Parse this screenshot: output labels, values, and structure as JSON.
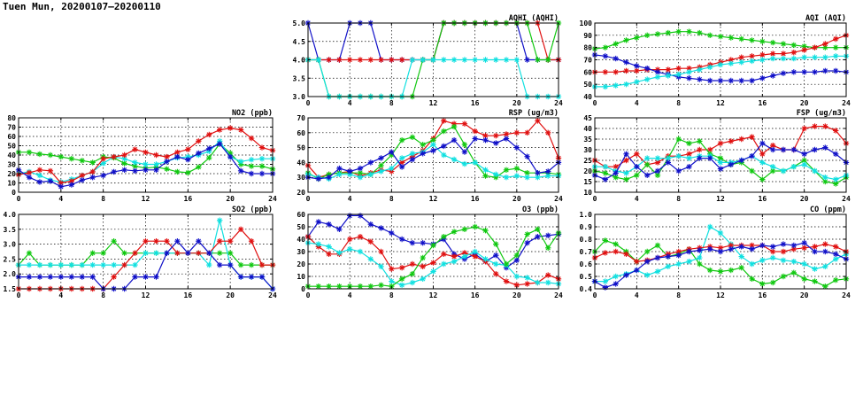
{
  "page_title": "Tuen Mun, 20200107–20200110",
  "colors": {
    "blue": "#1010c8",
    "red": "#e01010",
    "green": "#10c810",
    "cyan": "#10e0e0"
  },
  "chart_data": [
    {
      "id": "aqhi",
      "type": "line",
      "title": "AQHI (AQHI)",
      "xlim": [
        0,
        24
      ],
      "ylim": [
        3,
        5
      ],
      "xticks": [
        0,
        4,
        8,
        12,
        16,
        20,
        24
      ],
      "yticks": [
        "3.0",
        "3.5",
        "4.0",
        "4.5",
        "5.0"
      ],
      "grid": true,
      "series": [
        {
          "color": "blue",
          "values": [
            5,
            4,
            4,
            4,
            5,
            5,
            5,
            4,
            4,
            4,
            4,
            4,
            4,
            5,
            5,
            5,
            5,
            5,
            5,
            5,
            5,
            4,
            4,
            4,
            4
          ]
        },
        {
          "color": "red",
          "values": [
            4,
            4,
            4,
            4,
            4,
            4,
            4,
            4,
            4,
            4,
            4,
            4,
            4,
            5,
            5,
            5,
            5,
            5,
            5,
            5,
            5,
            5,
            5,
            4,
            4
          ]
        },
        {
          "color": "green",
          "values": [
            4,
            4,
            3,
            3,
            3,
            3,
            3,
            3,
            3,
            3,
            3,
            4,
            4,
            5,
            5,
            5,
            5,
            5,
            5,
            5,
            5,
            5,
            4,
            4,
            5
          ]
        },
        {
          "color": "cyan",
          "values": [
            4,
            4,
            3,
            3,
            3,
            3,
            3,
            3,
            3,
            3,
            4,
            4,
            4,
            4,
            4,
            4,
            4,
            4,
            4,
            4,
            4,
            3,
            3,
            3,
            3
          ]
        }
      ]
    },
    {
      "id": "aqi",
      "type": "line",
      "title": "AQI (AQI)",
      "xlim": [
        0,
        24
      ],
      "ylim": [
        40,
        100
      ],
      "xticks": [
        0,
        4,
        8,
        12,
        16,
        20,
        24
      ],
      "yticks": [
        "40",
        "50",
        "60",
        "70",
        "80",
        "90",
        "100"
      ],
      "grid": true,
      "series": [
        {
          "color": "green",
          "values": [
            79,
            80,
            83,
            86,
            88,
            90,
            91,
            92,
            93,
            93,
            92,
            90,
            89,
            88,
            87,
            86,
            85,
            84,
            83,
            82,
            81,
            80,
            80,
            80,
            80
          ]
        },
        {
          "color": "red",
          "values": [
            60,
            60,
            60,
            61,
            61,
            62,
            62,
            62,
            63,
            63,
            64,
            66,
            68,
            70,
            72,
            73,
            74,
            75,
            75,
            76,
            78,
            80,
            83,
            87,
            90
          ]
        },
        {
          "color": "blue",
          "values": [
            74,
            73,
            71,
            68,
            65,
            63,
            60,
            58,
            56,
            55,
            54,
            53,
            53,
            53,
            53,
            53,
            55,
            57,
            59,
            60,
            60,
            60,
            61,
            61,
            60
          ]
        },
        {
          "color": "cyan",
          "values": [
            48,
            48,
            49,
            50,
            52,
            54,
            56,
            57,
            58,
            60,
            62,
            64,
            66,
            67,
            68,
            69,
            70,
            71,
            71,
            71,
            72,
            72,
            72,
            73,
            73
          ]
        }
      ]
    },
    {
      "id": "no2",
      "type": "line",
      "title": "NO2 (ppb)",
      "xlim": [
        0,
        24
      ],
      "ylim": [
        0,
        80
      ],
      "xticks": [
        0,
        4,
        8,
        12,
        16,
        20,
        24
      ],
      "yticks": [
        "0",
        "10",
        "20",
        "30",
        "40",
        "50",
        "60",
        "70",
        "80"
      ],
      "grid": true,
      "series": [
        {
          "color": "green",
          "values": [
            43,
            43,
            41,
            40,
            38,
            36,
            34,
            32,
            38,
            37,
            31,
            28,
            26,
            27,
            25,
            22,
            21,
            27,
            37,
            52,
            42,
            30,
            28,
            28,
            25
          ]
        },
        {
          "color": "cyan",
          "values": [
            20,
            22,
            18,
            13,
            11,
            14,
            18,
            22,
            31,
            38,
            36,
            32,
            30,
            30,
            33,
            37,
            38,
            40,
            44,
            55,
            38,
            33,
            35,
            36,
            36
          ]
        },
        {
          "color": "red",
          "values": [
            19,
            21,
            24,
            23,
            10,
            12,
            18,
            22,
            36,
            38,
            40,
            46,
            43,
            40,
            38,
            43,
            46,
            55,
            62,
            67,
            69,
            67,
            58,
            48,
            45
          ]
        },
        {
          "color": "blue",
          "values": [
            24,
            16,
            11,
            12,
            6,
            8,
            13,
            16,
            18,
            22,
            24,
            23,
            24,
            24,
            33,
            38,
            35,
            42,
            47,
            52,
            38,
            23,
            20,
            20,
            20
          ]
        }
      ]
    },
    {
      "id": "rsp",
      "type": "line",
      "title": "RSP (ug/m3)",
      "xlim": [
        0,
        24
      ],
      "ylim": [
        20,
        70
      ],
      "xticks": [
        0,
        4,
        8,
        12,
        16,
        20,
        24
      ],
      "yticks": [
        "20",
        "30",
        "40",
        "50",
        "60",
        "70"
      ],
      "grid": true,
      "series": [
        {
          "color": "red",
          "values": [
            38,
            30,
            32,
            33,
            34,
            31,
            33,
            35,
            34,
            40,
            44,
            48,
            56,
            68,
            66,
            66,
            61,
            58,
            58,
            59,
            60,
            60,
            68,
            60,
            43
          ]
        },
        {
          "color": "green",
          "values": [
            33,
            29,
            32,
            33,
            33,
            33,
            32,
            38,
            45,
            55,
            57,
            52,
            55,
            61,
            64,
            52,
            40,
            31,
            30,
            35,
            36,
            33,
            33,
            33,
            32
          ]
        },
        {
          "color": "cyan",
          "values": [
            32,
            30,
            29,
            32,
            32,
            30,
            32,
            34,
            36,
            43,
            46,
            47,
            52,
            45,
            42,
            39,
            40,
            35,
            32,
            30,
            31,
            30,
            30,
            31,
            31
          ]
        },
        {
          "color": "blue",
          "values": [
            30,
            29,
            30,
            36,
            34,
            36,
            40,
            43,
            47,
            37,
            42,
            46,
            48,
            51,
            55,
            47,
            56,
            55,
            53,
            56,
            50,
            44,
            33,
            34,
            40
          ]
        }
      ]
    },
    {
      "id": "fsp",
      "type": "line",
      "title": "FSP (ug/m3)",
      "xlim": [
        0,
        24
      ],
      "ylim": [
        10,
        45
      ],
      "xticks": [
        0,
        4,
        8,
        12,
        16,
        20,
        24
      ],
      "yticks": [
        "10",
        "15",
        "20",
        "25",
        "30",
        "35",
        "40",
        "45"
      ],
      "grid": true,
      "series": [
        {
          "color": "red",
          "values": [
            25,
            22,
            22,
            25,
            28,
            23,
            24,
            27,
            27,
            28,
            30,
            30,
            33,
            34,
            35,
            36,
            28,
            32,
            30,
            30,
            40,
            41,
            41,
            39,
            33
          ]
        },
        {
          "color": "green",
          "values": [
            20,
            19,
            17,
            16,
            18,
            23,
            18,
            26,
            35,
            33,
            34,
            28,
            26,
            23,
            24,
            20,
            16,
            20,
            20,
            22,
            25,
            20,
            15,
            14,
            17
          ]
        },
        {
          "color": "cyan",
          "values": [
            22,
            22,
            20,
            19,
            22,
            26,
            26,
            26,
            27,
            26,
            27,
            27,
            24,
            24,
            25,
            27,
            24,
            22,
            20,
            22,
            23,
            20,
            17,
            16,
            18
          ]
        },
        {
          "color": "blue",
          "values": [
            18,
            16,
            19,
            28,
            22,
            18,
            20,
            24,
            20,
            22,
            26,
            26,
            21,
            23,
            25,
            27,
            33,
            30,
            30,
            30,
            28,
            30,
            31,
            28,
            24
          ]
        }
      ]
    },
    {
      "id": "so2",
      "type": "line",
      "title": "SO2 (ppb)",
      "xlim": [
        0,
        24
      ],
      "ylim": [
        1.5,
        4.0
      ],
      "xticks": [
        0,
        4,
        8,
        12,
        16,
        20,
        24
      ],
      "yticks": [
        "1.5",
        "2.0",
        "2.5",
        "3.0",
        "3.5",
        "4.0"
      ],
      "grid": true,
      "series": [
        {
          "color": "green",
          "values": [
            2.3,
            2.7,
            2.3,
            2.3,
            2.3,
            2.3,
            2.3,
            2.7,
            2.7,
            3.1,
            2.7,
            2.7,
            2.7,
            2.7,
            2.7,
            2.7,
            2.7,
            2.7,
            2.7,
            2.7,
            2.7,
            2.3,
            2.3,
            2.3,
            2.3
          ]
        },
        {
          "color": "cyan",
          "values": [
            2.3,
            2.3,
            2.3,
            2.3,
            2.3,
            2.3,
            2.3,
            2.3,
            2.3,
            2.3,
            2.3,
            2.3,
            2.7,
            2.7,
            2.7,
            2.7,
            2.7,
            2.7,
            2.3,
            3.8,
            2.3,
            1.9,
            1.9,
            1.9,
            1.5
          ]
        },
        {
          "color": "red",
          "values": [
            1.5,
            1.5,
            1.5,
            1.5,
            1.5,
            1.5,
            1.5,
            1.5,
            1.5,
            1.9,
            2.3,
            2.7,
            3.1,
            3.1,
            3.1,
            2.7,
            2.7,
            2.7,
            2.7,
            3.1,
            3.1,
            3.5,
            3.1,
            2.3,
            2.3
          ]
        },
        {
          "color": "blue",
          "values": [
            1.9,
            1.9,
            1.9,
            1.9,
            1.9,
            1.9,
            1.9,
            1.9,
            1.5,
            1.5,
            1.5,
            1.9,
            1.9,
            1.9,
            2.7,
            3.1,
            2.7,
            3.1,
            2.7,
            2.3,
            2.3,
            1.9,
            1.9,
            1.9,
            1.5
          ]
        }
      ]
    },
    {
      "id": "o3",
      "type": "line",
      "title": "O3 (ppb)",
      "xlim": [
        0,
        24
      ],
      "ylim": [
        0,
        60
      ],
      "xticks": [
        0,
        4,
        8,
        12,
        16,
        20,
        24
      ],
      "yticks": [
        "0",
        "10",
        "20",
        "30",
        "40",
        "50",
        "60"
      ],
      "grid": true,
      "series": [
        {
          "color": "blue",
          "values": [
            42,
            54,
            52,
            48,
            59,
            59,
            52,
            49,
            45,
            40,
            37,
            37,
            36,
            40,
            28,
            24,
            28,
            22,
            27,
            17,
            23,
            37,
            42,
            43,
            44
          ]
        },
        {
          "color": "red",
          "values": [
            42,
            34,
            28,
            28,
            40,
            42,
            38,
            30,
            16,
            17,
            20,
            18,
            21,
            28,
            26,
            29,
            26,
            22,
            12,
            6,
            3,
            4,
            5,
            11,
            8
          ]
        },
        {
          "color": "cyan",
          "values": [
            37,
            36,
            34,
            29,
            32,
            30,
            24,
            18,
            6,
            3,
            5,
            8,
            14,
            20,
            22,
            26,
            30,
            24,
            20,
            19,
            10,
            9,
            5,
            5,
            4
          ]
        },
        {
          "color": "green",
          "values": [
            2,
            2,
            2,
            2,
            2,
            2,
            2,
            3,
            2,
            8,
            12,
            25,
            35,
            42,
            46,
            48,
            50,
            47,
            36,
            20,
            27,
            44,
            48,
            33,
            45
          ]
        }
      ]
    },
    {
      "id": "co",
      "type": "line",
      "title": "CO (ppm)",
      "xlim": [
        0,
        24
      ],
      "ylim": [
        0.4,
        1.0
      ],
      "xticks": [
        0,
        4,
        8,
        12,
        16,
        20,
        24
      ],
      "yticks": [
        "0.4",
        "0.5",
        "0.6",
        "0.7",
        "0.8",
        "0.9",
        "1.0"
      ],
      "grid": true,
      "series": [
        {
          "color": "green",
          "values": [
            0.7,
            0.79,
            0.76,
            0.7,
            0.62,
            0.7,
            0.75,
            0.66,
            0.68,
            0.72,
            0.6,
            0.55,
            0.54,
            0.55,
            0.57,
            0.48,
            0.44,
            0.45,
            0.5,
            0.53,
            0.48,
            0.46,
            0.42,
            0.47,
            0.48
          ]
        },
        {
          "color": "cyan",
          "values": [
            0.46,
            0.46,
            0.5,
            0.52,
            0.55,
            0.51,
            0.54,
            0.58,
            0.6,
            0.62,
            0.65,
            0.9,
            0.85,
            0.76,
            0.66,
            0.6,
            0.63,
            0.65,
            0.63,
            0.62,
            0.6,
            0.56,
            0.58,
            0.64,
            0.68
          ]
        },
        {
          "color": "red",
          "values": [
            0.65,
            0.69,
            0.7,
            0.68,
            0.62,
            0.63,
            0.65,
            0.68,
            0.7,
            0.72,
            0.73,
            0.74,
            0.73,
            0.75,
            0.75,
            0.75,
            0.75,
            0.7,
            0.7,
            0.72,
            0.73,
            0.74,
            0.76,
            0.74,
            0.7
          ]
        },
        {
          "color": "blue",
          "values": [
            0.46,
            0.41,
            0.44,
            0.51,
            0.55,
            0.62,
            0.65,
            0.66,
            0.67,
            0.7,
            0.71,
            0.72,
            0.7,
            0.72,
            0.74,
            0.72,
            0.75,
            0.74,
            0.76,
            0.75,
            0.77,
            0.7,
            0.7,
            0.68,
            0.64
          ]
        }
      ]
    }
  ]
}
